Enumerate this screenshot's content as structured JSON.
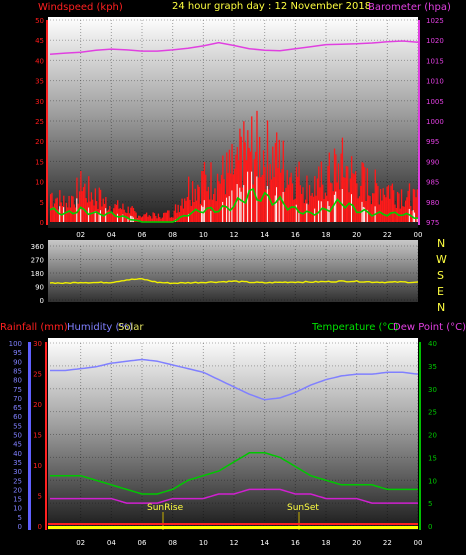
{
  "header": {
    "title": "24 hour graph day : 12 November 2018",
    "left_label": "Windspeed (kph)",
    "right_label": "Barometer (hpa)"
  },
  "colors": {
    "wind": "#ff1a1a",
    "gust_dark": "#a00000",
    "barometer": "#e040e0",
    "wind_avg": "#00d000",
    "wind_light": "#ffffff",
    "direction": "#f0f000",
    "temperature": "#00c800",
    "dewpoint": "#d020d0",
    "humidity": "#8080ff",
    "rain": "#ff2020",
    "solar": "#ffff00"
  },
  "chart_data": [
    {
      "type": "line",
      "title": "24 hour graph day : 12 November 2018",
      "ylabel": "Windspeed (kph)",
      "ylabel_right": "Barometer (hpa)",
      "x_ticks": [
        "02",
        "04",
        "06",
        "08",
        "10",
        "12",
        "14",
        "16",
        "18",
        "20",
        "22",
        "00"
      ],
      "y_ticks": [
        "0",
        "5",
        "10",
        "15",
        "20",
        "25",
        "30",
        "35",
        "40",
        "45",
        "50"
      ],
      "y_ticks_right": [
        "975",
        "980",
        "985",
        "990",
        "995",
        "1000",
        "1005",
        "1010",
        "1015",
        "1020",
        "1025"
      ],
      "ylim": [
        0,
        50
      ],
      "ylim_right": [
        975,
        1025
      ],
      "x": [
        0,
        1,
        2,
        3,
        4,
        5,
        6,
        7,
        8,
        9,
        10,
        11,
        12,
        13,
        14,
        15,
        16,
        17,
        18,
        19,
        20,
        21,
        22,
        23,
        24
      ],
      "series": [
        {
          "name": "Barometer",
          "axis": "right",
          "values": [
            1016.5,
            1016.8,
            1017.0,
            1017.5,
            1017.8,
            1017.6,
            1017.3,
            1017.3,
            1017.6,
            1018.0,
            1018.6,
            1019.4,
            1018.7,
            1017.9,
            1017.5,
            1017.4,
            1017.9,
            1018.4,
            1018.9,
            1019.0,
            1019.1,
            1019.3,
            1019.6,
            1019.8,
            1019.5
          ]
        },
        {
          "name": "Wind gust",
          "axis": "left",
          "values": [
            9,
            6,
            11,
            8,
            5,
            4,
            2,
            2,
            3,
            11,
            13,
            14,
            17,
            24,
            22,
            19,
            14,
            11,
            14,
            18,
            14,
            11,
            11,
            9,
            7
          ]
        },
        {
          "name": "Wind average",
          "axis": "left",
          "values": [
            3,
            2,
            3,
            2,
            2,
            1,
            0,
            0,
            0,
            2,
            3,
            3,
            4,
            7,
            6,
            5,
            3,
            2,
            3,
            5,
            3,
            2,
            2,
            2,
            1
          ]
        }
      ]
    },
    {
      "type": "line",
      "ylabel_right": "N W S E N",
      "compass_labels": [
        "N",
        "W",
        "S",
        "E",
        "N"
      ],
      "y_ticks": [
        "0",
        "90",
        "180",
        "270",
        "360"
      ],
      "ylim": [
        0,
        360
      ],
      "x": [
        0,
        1,
        2,
        3,
        4,
        5,
        6,
        7,
        8,
        9,
        10,
        11,
        12,
        13,
        14,
        15,
        16,
        17,
        18,
        19,
        20,
        21,
        22,
        23,
        24
      ],
      "series": [
        {
          "name": "Wind direction",
          "values": [
            115,
            112,
            118,
            116,
            118,
            135,
            140,
            118,
            112,
            115,
            118,
            121,
            125,
            118,
            115,
            118,
            120,
            120,
            122,
            125,
            125,
            120,
            118,
            120,
            118
          ]
        }
      ]
    },
    {
      "type": "line",
      "ylabel": "Rainfall (mm)",
      "ylabel_humidity": "Humidity (%)",
      "ylabel_solar": "Solar",
      "ylabel_right": "Temperature (°C)",
      "ylabel_right2": "Dew Point (°C)",
      "annotations": [
        "SunRise",
        "SunSet"
      ],
      "x_ticks": [
        "02",
        "04",
        "06",
        "08",
        "10",
        "12",
        "14",
        "16",
        "18",
        "20",
        "22",
        "00"
      ],
      "y_ticks_humidity": [
        "0",
        "5",
        "10",
        "15",
        "20",
        "25",
        "30",
        "35",
        "40",
        "45",
        "50",
        "55",
        "60",
        "65",
        "70",
        "75",
        "80",
        "85",
        "90",
        "95",
        "100"
      ],
      "y_ticks_rain": [
        "0",
        "5",
        "10",
        "15",
        "20",
        "25",
        "30"
      ],
      "y_ticks_right": [
        "0",
        "5",
        "10",
        "15",
        "20",
        "25",
        "30",
        "35",
        "40"
      ],
      "ylim_humidity": [
        0,
        100
      ],
      "ylim_rain": [
        0,
        30
      ],
      "ylim_right": [
        0,
        40
      ],
      "x": [
        0,
        1,
        2,
        3,
        4,
        5,
        6,
        7,
        8,
        9,
        10,
        11,
        12,
        13,
        14,
        15,
        16,
        17,
        18,
        19,
        20,
        21,
        22,
        23,
        24
      ],
      "series": [
        {
          "name": "Humidity",
          "values": [
            85,
            85,
            86,
            87,
            89,
            90,
            91,
            90,
            88,
            86,
            84,
            80,
            76,
            72,
            69,
            70,
            73,
            77,
            80,
            82,
            83,
            83,
            84,
            84,
            83
          ]
        },
        {
          "name": "Temperature",
          "values": [
            11,
            11,
            11,
            10,
            9,
            8,
            7,
            7,
            8,
            10,
            11,
            12,
            14,
            16,
            16,
            15,
            13,
            11,
            10,
            9,
            9,
            9,
            8,
            8,
            8
          ]
        },
        {
          "name": "Dew Point",
          "values": [
            6,
            6,
            6,
            6,
            6,
            5,
            5,
            5,
            6,
            6,
            6,
            7,
            7,
            8,
            8,
            8,
            7,
            7,
            6,
            6,
            6,
            5,
            5,
            5,
            5
          ]
        },
        {
          "name": "Rainfall",
          "axis": "rain",
          "values": [
            0,
            0,
            0,
            0,
            0,
            0,
            0,
            0,
            0,
            0,
            0,
            0,
            0,
            0,
            0,
            0,
            0,
            0,
            0,
            0,
            0,
            0,
            0,
            0,
            0
          ]
        }
      ]
    }
  ],
  "wind_panel": {
    "title": "24 hour graph day : 12 November 2018"
  },
  "bottom_panel": {
    "rain_label": "Rainfall (mm)",
    "humidity_label": "Humidity (%)",
    "solar_label": "Solar",
    "temp_label": "Temperature (°C)",
    "dew_label": "Dew Point (°C)",
    "sunrise": "SunRise",
    "sunset": "SunSet"
  }
}
